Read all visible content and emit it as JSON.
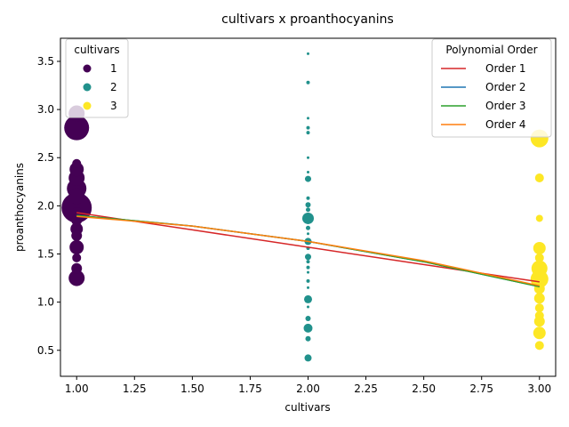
{
  "chart_data": {
    "type": "scatter",
    "title": "cultivars x proanthocyanins",
    "xlabel": "cultivars",
    "ylabel": "proanthocyanins",
    "xlim": [
      0.93,
      3.07
    ],
    "ylim": [
      0.23,
      3.74
    ],
    "xticks": [
      "1.00",
      "1.25",
      "1.50",
      "1.75",
      "2.00",
      "2.25",
      "2.50",
      "2.75",
      "3.00"
    ],
    "xtick_values": [
      1.0,
      1.25,
      1.5,
      1.75,
      2.0,
      2.25,
      2.5,
      2.75,
      3.0
    ],
    "yticks": [
      "0.5",
      "1.0",
      "1.5",
      "2.0",
      "2.5",
      "3.0",
      "3.5"
    ],
    "ytick_values": [
      0.5,
      1.0,
      1.5,
      2.0,
      2.5,
      3.0,
      3.5
    ],
    "grid": false,
    "cultivar_legend": {
      "title": "cultivars",
      "placement": "top-left",
      "entries": [
        {
          "label": "1",
          "color": "#440154"
        },
        {
          "label": "2",
          "color": "#21918c"
        },
        {
          "label": "3",
          "color": "#fde725"
        }
      ]
    },
    "order_legend": {
      "title": "Polynomial Order",
      "placement": "top-right",
      "entries": [
        {
          "label": "Order 1",
          "color": "#d62728"
        },
        {
          "label": "Order 2",
          "color": "#1f77b4"
        },
        {
          "label": "Order 3",
          "color": "#2ca02c"
        },
        {
          "label": "Order 4",
          "color": "#ff7f0e"
        }
      ]
    },
    "series": [
      {
        "cultivar": "1",
        "color": "#440154",
        "points": [
          {
            "x": 1,
            "y": 2.81,
            "s": 14
          },
          {
            "x": 1,
            "y": 1.98,
            "s": 17
          },
          {
            "x": 1,
            "y": 2.18,
            "s": 11
          },
          {
            "x": 1,
            "y": 2.29,
            "s": 9
          },
          {
            "x": 1,
            "y": 2.38,
            "s": 8
          },
          {
            "x": 1,
            "y": 2.44,
            "s": 5
          },
          {
            "x": 1,
            "y": 2.1,
            "s": 9
          },
          {
            "x": 1,
            "y": 1.91,
            "s": 8
          },
          {
            "x": 1,
            "y": 1.85,
            "s": 6
          },
          {
            "x": 1,
            "y": 1.76,
            "s": 7
          },
          {
            "x": 1,
            "y": 1.69,
            "s": 6
          },
          {
            "x": 1,
            "y": 1.57,
            "s": 8
          },
          {
            "x": 1,
            "y": 1.46,
            "s": 5
          },
          {
            "x": 1,
            "y": 1.35,
            "s": 6
          },
          {
            "x": 1,
            "y": 1.25,
            "s": 9
          },
          {
            "x": 1,
            "y": 2.96,
            "s": 9
          }
        ]
      },
      {
        "cultivar": "2",
        "color": "#21918c",
        "points": [
          {
            "x": 2,
            "y": 3.58,
            "s": 1.5
          },
          {
            "x": 2,
            "y": 3.28,
            "s": 2
          },
          {
            "x": 2,
            "y": 2.91,
            "s": 1.5
          },
          {
            "x": 2,
            "y": 2.81,
            "s": 2
          },
          {
            "x": 2,
            "y": 2.76,
            "s": 2
          },
          {
            "x": 2,
            "y": 2.5,
            "s": 1.5
          },
          {
            "x": 2,
            "y": 2.35,
            "s": 1.5
          },
          {
            "x": 2,
            "y": 2.28,
            "s": 3.5
          },
          {
            "x": 2,
            "y": 2.08,
            "s": 2
          },
          {
            "x": 2,
            "y": 2.01,
            "s": 3
          },
          {
            "x": 2,
            "y": 1.96,
            "s": 2.5
          },
          {
            "x": 2,
            "y": 1.87,
            "s": 6.5
          },
          {
            "x": 2,
            "y": 1.77,
            "s": 2.5
          },
          {
            "x": 2,
            "y": 1.71,
            "s": 1.5
          },
          {
            "x": 2,
            "y": 1.63,
            "s": 4
          },
          {
            "x": 2,
            "y": 1.56,
            "s": 2
          },
          {
            "x": 2,
            "y": 1.47,
            "s": 3.5
          },
          {
            "x": 2,
            "y": 1.42,
            "s": 2
          },
          {
            "x": 2,
            "y": 1.36,
            "s": 2
          },
          {
            "x": 2,
            "y": 1.31,
            "s": 1.5
          },
          {
            "x": 2,
            "y": 1.22,
            "s": 2
          },
          {
            "x": 2,
            "y": 1.15,
            "s": 1.5
          },
          {
            "x": 2,
            "y": 1.03,
            "s": 4.5
          },
          {
            "x": 2,
            "y": 0.95,
            "s": 1.5
          },
          {
            "x": 2,
            "y": 0.83,
            "s": 3
          },
          {
            "x": 2,
            "y": 0.73,
            "s": 5
          },
          {
            "x": 2,
            "y": 0.62,
            "s": 3
          },
          {
            "x": 2,
            "y": 0.42,
            "s": 4
          }
        ]
      },
      {
        "cultivar": "3",
        "color": "#fde725",
        "points": [
          {
            "x": 3,
            "y": 2.7,
            "s": 10
          },
          {
            "x": 3,
            "y": 2.29,
            "s": 5
          },
          {
            "x": 3,
            "y": 1.87,
            "s": 4
          },
          {
            "x": 3,
            "y": 1.56,
            "s": 7
          },
          {
            "x": 3,
            "y": 1.46,
            "s": 5
          },
          {
            "x": 3,
            "y": 1.35,
            "s": 9
          },
          {
            "x": 3,
            "y": 1.24,
            "s": 10
          },
          {
            "x": 3,
            "y": 1.14,
            "s": 6
          },
          {
            "x": 3,
            "y": 1.04,
            "s": 6
          },
          {
            "x": 3,
            "y": 0.94,
            "s": 5
          },
          {
            "x": 3,
            "y": 0.86,
            "s": 5
          },
          {
            "x": 3,
            "y": 0.8,
            "s": 6
          },
          {
            "x": 3,
            "y": 0.68,
            "s": 7
          },
          {
            "x": 3,
            "y": 0.55,
            "s": 5
          }
        ]
      }
    ],
    "fits": [
      {
        "label": "Order 1",
        "color": "#d62728",
        "x": [
          1,
          1.5,
          2,
          2.5,
          3
        ],
        "y": [
          1.93,
          1.75,
          1.57,
          1.39,
          1.21
        ]
      },
      {
        "label": "Order 2",
        "color": "#1f77b4",
        "x": [
          1,
          1.5,
          2,
          2.5,
          3
        ],
        "y": [
          1.9,
          1.79,
          1.63,
          1.42,
          1.16
        ]
      },
      {
        "label": "Order 3",
        "color": "#2ca02c",
        "x": [
          1,
          1.5,
          2,
          2.5,
          3
        ],
        "y": [
          1.9,
          1.79,
          1.63,
          1.42,
          1.16
        ]
      },
      {
        "label": "Order 4",
        "color": "#ff7f0e",
        "x": [
          1,
          1.5,
          2,
          2.5,
          3
        ],
        "y": [
          1.89,
          1.79,
          1.63,
          1.43,
          1.17
        ]
      }
    ]
  }
}
